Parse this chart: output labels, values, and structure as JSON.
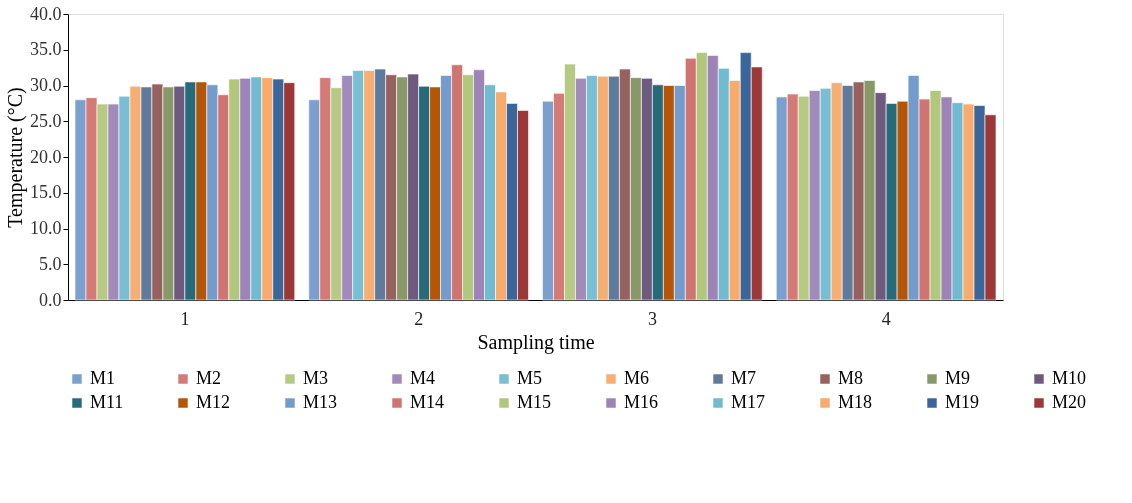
{
  "chart_data": {
    "type": "bar",
    "xlabel": "Sampling time",
    "ylabel": "Temperature (°C)",
    "categories": [
      "1",
      "2",
      "3",
      "4"
    ],
    "ylim": [
      0,
      40
    ],
    "yticks": [
      {
        "value": 0,
        "label": "0.0"
      },
      {
        "value": 5,
        "label": "5.0"
      },
      {
        "value": 10,
        "label": "10.0"
      },
      {
        "value": 15,
        "label": "15.0"
      },
      {
        "value": 20,
        "label": "20.0"
      },
      {
        "value": 25,
        "label": "25.0"
      },
      {
        "value": 30,
        "label": "30.0"
      },
      {
        "value": 35,
        "label": "35.0"
      },
      {
        "value": 40,
        "label": "40.0"
      }
    ],
    "grid": false,
    "legend": "bottom",
    "series": [
      {
        "name": "M1",
        "color": "#7ba0cd",
        "values": [
          28.0,
          28.0,
          27.8,
          28.4
        ]
      },
      {
        "name": "M2",
        "color": "#d47b77",
        "values": [
          28.3,
          31.1,
          28.9,
          28.8
        ]
      },
      {
        "name": "M3",
        "color": "#b6ca84",
        "values": [
          27.4,
          29.7,
          33.0,
          28.5
        ]
      },
      {
        "name": "M4",
        "color": "#a28bbb",
        "values": [
          27.4,
          31.4,
          31.0,
          29.3
        ]
      },
      {
        "name": "M5",
        "color": "#79bfd4",
        "values": [
          28.5,
          32.1,
          31.4,
          29.6
        ]
      },
      {
        "name": "M6",
        "color": "#f7ae72",
        "values": [
          29.9,
          32.1,
          31.3,
          30.4
        ]
      },
      {
        "name": "M7",
        "color": "#5f7a9a",
        "values": [
          29.8,
          32.3,
          31.3,
          30.0
        ]
      },
      {
        "name": "M8",
        "color": "#96615f",
        "values": [
          30.2,
          31.5,
          32.3,
          30.5
        ]
      },
      {
        "name": "M9",
        "color": "#899868",
        "values": [
          29.8,
          31.2,
          31.1,
          30.7
        ]
      },
      {
        "name": "M10",
        "color": "#6f5a7f",
        "values": [
          29.9,
          31.6,
          31.0,
          29.0
        ]
      },
      {
        "name": "M11",
        "color": "#276b7b",
        "values": [
          30.5,
          29.9,
          30.1,
          27.5
        ]
      },
      {
        "name": "M12",
        "color": "#b55507",
        "values": [
          30.5,
          29.8,
          30.0,
          27.8
        ]
      },
      {
        "name": "M13",
        "color": "#739ccc",
        "values": [
          30.1,
          31.4,
          30.0,
          31.4
        ]
      },
      {
        "name": "M14",
        "color": "#cf7471",
        "values": [
          28.7,
          32.9,
          33.8,
          28.1
        ]
      },
      {
        "name": "M15",
        "color": "#b1c77c",
        "values": [
          30.9,
          31.5,
          34.6,
          29.3
        ]
      },
      {
        "name": "M16",
        "color": "#9d83b6",
        "values": [
          31.0,
          32.2,
          34.2,
          28.4
        ]
      },
      {
        "name": "M17",
        "color": "#70bbd0",
        "values": [
          31.2,
          30.1,
          32.4,
          27.6
        ]
      },
      {
        "name": "M18",
        "color": "#f8ab6c",
        "values": [
          31.1,
          29.1,
          30.7,
          27.4
        ]
      },
      {
        "name": "M19",
        "color": "#3a6699",
        "values": [
          30.9,
          27.5,
          34.6,
          27.2
        ]
      },
      {
        "name": "M20",
        "color": "#9c3838",
        "values": [
          30.4,
          26.5,
          32.6,
          25.9
        ]
      }
    ]
  }
}
